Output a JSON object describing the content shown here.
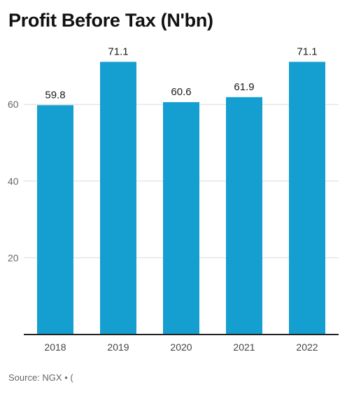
{
  "chart_data": {
    "type": "bar",
    "title": "Profit Before Tax (N'bn)",
    "xlabel": "",
    "ylabel": "",
    "categories": [
      "2018",
      "2019",
      "2020",
      "2021",
      "2022"
    ],
    "values": [
      59.8,
      71.1,
      60.6,
      61.9,
      71.1
    ],
    "data_labels": [
      "59.8",
      "71.1",
      "60.6",
      "61.9",
      "71.1"
    ],
    "y_ticks": [
      20,
      40,
      60
    ],
    "ylim": [
      0,
      75
    ],
    "grid": true,
    "bar_color": "#159fd0",
    "source": "Source: NGX • ("
  }
}
